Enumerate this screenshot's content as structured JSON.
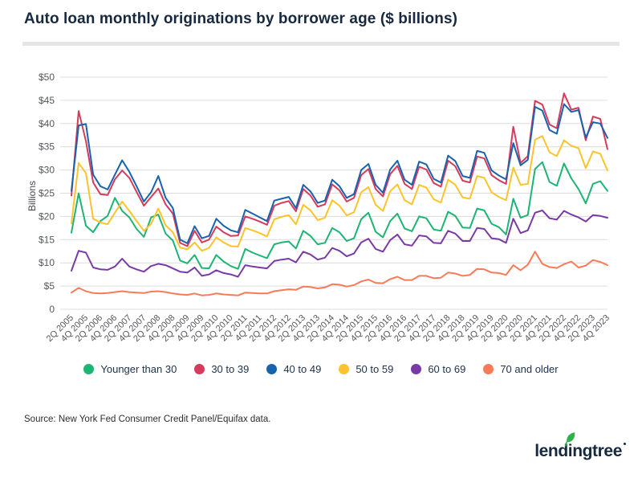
{
  "header": {
    "title": "Auto loan monthly originations by borrower age ($ billions)"
  },
  "chart_data": {
    "type": "line",
    "title": "Auto loan monthly originations by borrower age ($ billions)",
    "xlabel": "",
    "ylabel": "Billions",
    "ylim": [
      0,
      50
    ],
    "grid": "horizontal",
    "legend_position": "bottom",
    "yticks": [
      50,
      45,
      40,
      35,
      30,
      25,
      20,
      15,
      10,
      5,
      0
    ],
    "ytick_labels": [
      "$50",
      "$45",
      "$40",
      "$35",
      "$30",
      "$25",
      "$20",
      "$15",
      "$10",
      "$5",
      "0"
    ],
    "x_tick_labels": [
      "2Q 2005",
      "4Q 2005",
      "2Q 2006",
      "4Q 2006",
      "2Q 2007",
      "4Q 2007",
      "2Q 2008",
      "4Q 2008",
      "2Q 2009",
      "4Q 2009",
      "2Q 2010",
      "4Q 2010",
      "2Q 2011",
      "4Q 2011",
      "2Q 2012",
      "4Q 2012",
      "2Q 2013",
      "4Q 2013",
      "2Q 2014",
      "4Q 2014",
      "2Q 2015",
      "4Q 2015",
      "2Q 2016",
      "4Q 2016",
      "2Q 2017",
      "4Q 2017",
      "2Q 2018",
      "4Q 2018",
      "2Q 2019",
      "4Q 2019",
      "2Q 2020",
      "4Q 2020",
      "2Q 2021",
      "4Q 2021",
      "2Q 2022",
      "4Q 2022",
      "2Q 2023",
      "4Q 2023"
    ],
    "x": [
      "2Q 2005",
      "3Q 2005",
      "4Q 2005",
      "1Q 2006",
      "2Q 2006",
      "3Q 2006",
      "4Q 2006",
      "1Q 2007",
      "2Q 2007",
      "3Q 2007",
      "4Q 2007",
      "1Q 2008",
      "2Q 2008",
      "3Q 2008",
      "4Q 2008",
      "1Q 2009",
      "2Q 2009",
      "3Q 2009",
      "4Q 2009",
      "1Q 2010",
      "2Q 2010",
      "3Q 2010",
      "4Q 2010",
      "1Q 2011",
      "2Q 2011",
      "3Q 2011",
      "4Q 2011",
      "1Q 2012",
      "2Q 2012",
      "3Q 2012",
      "4Q 2012",
      "1Q 2013",
      "2Q 2013",
      "3Q 2013",
      "4Q 2013",
      "1Q 2014",
      "2Q 2014",
      "3Q 2014",
      "4Q 2014",
      "1Q 2015",
      "2Q 2015",
      "3Q 2015",
      "4Q 2015",
      "1Q 2016",
      "2Q 2016",
      "3Q 2016",
      "4Q 2016",
      "1Q 2017",
      "2Q 2017",
      "3Q 2017",
      "4Q 2017",
      "1Q 2018",
      "2Q 2018",
      "3Q 2018",
      "4Q 2018",
      "1Q 2019",
      "2Q 2019",
      "3Q 2019",
      "4Q 2019",
      "1Q 2020",
      "2Q 2020",
      "3Q 2020",
      "4Q 2020",
      "1Q 2021",
      "2Q 2021",
      "3Q 2021",
      "4Q 2021",
      "1Q 2022",
      "2Q 2022",
      "3Q 2022",
      "4Q 2022",
      "1Q 2023",
      "2Q 2023",
      "3Q 2023",
      "4Q 2023"
    ],
    "series": [
      {
        "name": "Younger than 30",
        "color": "#1cb573",
        "values": [
          16.5,
          25.0,
          18.0,
          16.6,
          19.0,
          20.1,
          24.0,
          21.2,
          19.8,
          17.3,
          15.6,
          19.8,
          20.4,
          16.3,
          14.8,
          10.5,
          9.9,
          11.7,
          8.9,
          8.8,
          11.7,
          10.3,
          9.3,
          8.7,
          13.0,
          12.2,
          11.6,
          11.0,
          14.0,
          14.4,
          14.6,
          13.1,
          16.9,
          15.8,
          14.0,
          14.3,
          17.5,
          16.6,
          14.7,
          15.3,
          19.4,
          20.8,
          16.7,
          15.5,
          19.0,
          20.6,
          17.4,
          16.8,
          20.0,
          19.6,
          17.2,
          16.9,
          21.0,
          20.1,
          17.6,
          17.5,
          21.7,
          21.3,
          18.4,
          17.7,
          16.1,
          23.8,
          19.7,
          20.3,
          30.2,
          31.7,
          27.4,
          26.6,
          31.4,
          28.2,
          25.9,
          22.8,
          27.0,
          27.6,
          25.5
        ]
      },
      {
        "name": "30 to 39",
        "color": "#d63a5c",
        "values": [
          24.5,
          42.7,
          36.2,
          27.3,
          24.8,
          24.6,
          28.0,
          29.9,
          28.3,
          25.3,
          22.3,
          24.2,
          26.0,
          22.6,
          20.6,
          14.3,
          13.6,
          16.9,
          14.4,
          15.0,
          17.8,
          16.6,
          15.8,
          15.9,
          20.0,
          19.5,
          18.9,
          18.2,
          22.3,
          22.9,
          23.3,
          21.1,
          25.9,
          24.5,
          22.1,
          22.6,
          26.9,
          25.6,
          23.2,
          24.0,
          28.9,
          30.2,
          25.9,
          24.3,
          29.1,
          30.9,
          27.0,
          25.9,
          30.7,
          30.1,
          27.2,
          26.4,
          32.0,
          30.8,
          27.7,
          27.3,
          32.9,
          32.5,
          28.9,
          27.8,
          27.0,
          39.3,
          31.5,
          33.0,
          44.9,
          44.1,
          39.8,
          39.0,
          46.5,
          43.0,
          43.4,
          36.4,
          41.5,
          41.0,
          34.5
        ]
      },
      {
        "name": "40 to 49",
        "color": "#1863ae",
        "values": [
          25.5,
          39.6,
          39.9,
          29.0,
          26.5,
          25.8,
          29.0,
          32.1,
          29.6,
          26.5,
          23.2,
          25.2,
          28.7,
          24.0,
          21.8,
          15.0,
          14.2,
          17.9,
          15.3,
          15.8,
          19.5,
          18.0,
          17.0,
          16.6,
          21.4,
          20.6,
          19.8,
          19.0,
          23.4,
          23.8,
          24.2,
          21.8,
          26.8,
          25.4,
          22.9,
          23.4,
          27.9,
          26.5,
          24.0,
          24.8,
          30.0,
          31.3,
          26.8,
          25.1,
          30.1,
          32.0,
          27.9,
          26.8,
          31.8,
          31.2,
          28.1,
          27.3,
          33.1,
          31.9,
          28.7,
          28.3,
          34.1,
          33.7,
          29.9,
          28.8,
          28.0,
          35.8,
          31.0,
          32.2,
          43.6,
          42.8,
          38.6,
          37.8,
          44.2,
          42.5,
          42.9,
          37.0,
          40.3,
          40.0,
          36.9
        ]
      },
      {
        "name": "50 to 59",
        "color": "#fcc32c",
        "values": [
          18.5,
          31.5,
          29.3,
          19.5,
          18.7,
          18.3,
          20.8,
          23.2,
          21.2,
          19.0,
          16.9,
          18.4,
          21.7,
          18.1,
          16.6,
          13.3,
          12.9,
          14.4,
          12.6,
          13.2,
          15.5,
          14.4,
          13.6,
          13.5,
          17.5,
          17.0,
          16.4,
          15.7,
          19.4,
          19.9,
          20.3,
          18.3,
          22.5,
          21.3,
          19.2,
          19.7,
          23.5,
          22.3,
          20.2,
          20.9,
          25.2,
          26.3,
          22.5,
          21.2,
          25.4,
          26.9,
          23.5,
          22.6,
          26.8,
          26.2,
          23.7,
          23.0,
          27.9,
          26.8,
          24.1,
          23.8,
          28.7,
          28.3,
          25.2,
          24.2,
          23.5,
          30.5,
          26.8,
          27.0,
          36.5,
          37.3,
          33.8,
          33.0,
          36.4,
          35.2,
          34.7,
          30.4,
          34.0,
          33.5,
          29.9
        ]
      },
      {
        "name": "60 to 69",
        "color": "#7a3aa5",
        "values": [
          8.3,
          12.6,
          12.2,
          9.0,
          8.6,
          8.5,
          9.2,
          10.9,
          9.2,
          8.6,
          8.1,
          9.3,
          9.8,
          9.5,
          8.8,
          8.1,
          7.9,
          9.0,
          7.2,
          7.5,
          8.4,
          7.8,
          7.5,
          7.0,
          9.5,
          9.2,
          9.0,
          8.8,
          10.4,
          10.7,
          10.9,
          10.1,
          12.4,
          11.8,
          10.7,
          11.1,
          13.2,
          12.6,
          11.4,
          12.0,
          14.4,
          15.2,
          13.0,
          12.4,
          14.9,
          16.1,
          14.0,
          13.7,
          15.9,
          15.7,
          14.3,
          14.2,
          16.9,
          16.3,
          14.7,
          14.7,
          17.5,
          17.3,
          15.3,
          15.1,
          14.3,
          19.5,
          16.4,
          17.0,
          20.8,
          21.3,
          19.6,
          19.3,
          21.2,
          20.4,
          19.8,
          18.9,
          20.3,
          20.1,
          19.7
        ]
      },
      {
        "name": "70 and older",
        "color": "#f97a57",
        "values": [
          3.6,
          4.6,
          3.9,
          3.5,
          3.4,
          3.5,
          3.7,
          3.9,
          3.7,
          3.6,
          3.5,
          3.8,
          3.9,
          3.7,
          3.4,
          3.2,
          3.1,
          3.4,
          3.0,
          3.1,
          3.4,
          3.2,
          3.1,
          3.0,
          3.6,
          3.5,
          3.4,
          3.4,
          3.9,
          4.1,
          4.3,
          4.2,
          4.9,
          4.8,
          4.5,
          4.7,
          5.4,
          5.3,
          4.9,
          5.2,
          6.0,
          6.4,
          5.7,
          5.6,
          6.5,
          7.0,
          6.3,
          6.3,
          7.2,
          7.2,
          6.7,
          6.8,
          7.9,
          7.7,
          7.2,
          7.4,
          8.7,
          8.6,
          7.9,
          7.8,
          7.4,
          9.5,
          8.4,
          9.6,
          12.4,
          9.8,
          9.1,
          8.9,
          9.7,
          10.3,
          9.0,
          9.4,
          10.6,
          10.2,
          9.5
        ]
      }
    ]
  },
  "footer": {
    "source": "Source: New York Fed Consumer Credit Panel/Equifax data.",
    "brand": "lendingtree"
  },
  "colors": {
    "navy": "#16293f",
    "leaf_green": "#2cb34a",
    "gridline": "#dcdcdd"
  }
}
